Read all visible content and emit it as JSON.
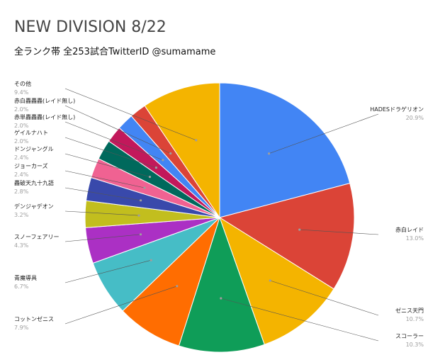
{
  "chart_data": {
    "type": "pie",
    "title": "NEW DIVISION 8/22",
    "subtitle": "全ランク帯 全253試合TwitterID @sumamame",
    "slices": [
      {
        "label": "HADESドラゲリオン",
        "value": 20.9,
        "pct_label": "20.9%",
        "color": "#4285f4"
      },
      {
        "label": "赤白レイド",
        "value": 13.0,
        "pct_label": "13.0%",
        "color": "#db4437"
      },
      {
        "label": "ゼニス天門",
        "value": 10.7,
        "pct_label": "10.7%",
        "color": "#f4b400"
      },
      {
        "label": "スコーラー",
        "value": 10.3,
        "pct_label": "10.3%",
        "color": "#0f9d58"
      },
      {
        "label": "コットンゼニス",
        "value": 7.9,
        "pct_label": "7.9%",
        "color": "#ff6d01"
      },
      {
        "label": "青魔導具",
        "value": 6.7,
        "pct_label": "6.7%",
        "color": "#46bdc6"
      },
      {
        "label": "スノーフェアリー",
        "value": 4.3,
        "pct_label": "4.3%",
        "color": "#ab30c4"
      },
      {
        "label": "デンジャデオン",
        "value": 3.2,
        "pct_label": "3.2%",
        "color": "#c2be1e"
      },
      {
        "label": "轟破天九十九語",
        "value": 2.8,
        "pct_label": "2.8%",
        "color": "#3949ab"
      },
      {
        "label": "ジョーカーズ",
        "value": 2.4,
        "pct_label": "2.4%",
        "color": "#f06292"
      },
      {
        "label": "ドンジャングル",
        "value": 2.4,
        "pct_label": "2.4%",
        "color": "#00695c"
      },
      {
        "label": "ゲイルナハト",
        "value": 2.0,
        "pct_label": "2.0%",
        "color": "#c2185b"
      },
      {
        "label": "赤単轟轟轟(レイド無し)",
        "value": 2.0,
        "pct_label": "2.0%",
        "color": "#4285f4"
      },
      {
        "label": "赤白轟轟轟(レイド無し)",
        "value": 2.0,
        "pct_label": "2.0%",
        "color": "#db4437"
      },
      {
        "label": "その他",
        "value": 9.4,
        "pct_label": "9.4%",
        "color": "#f4b400"
      }
    ]
  }
}
